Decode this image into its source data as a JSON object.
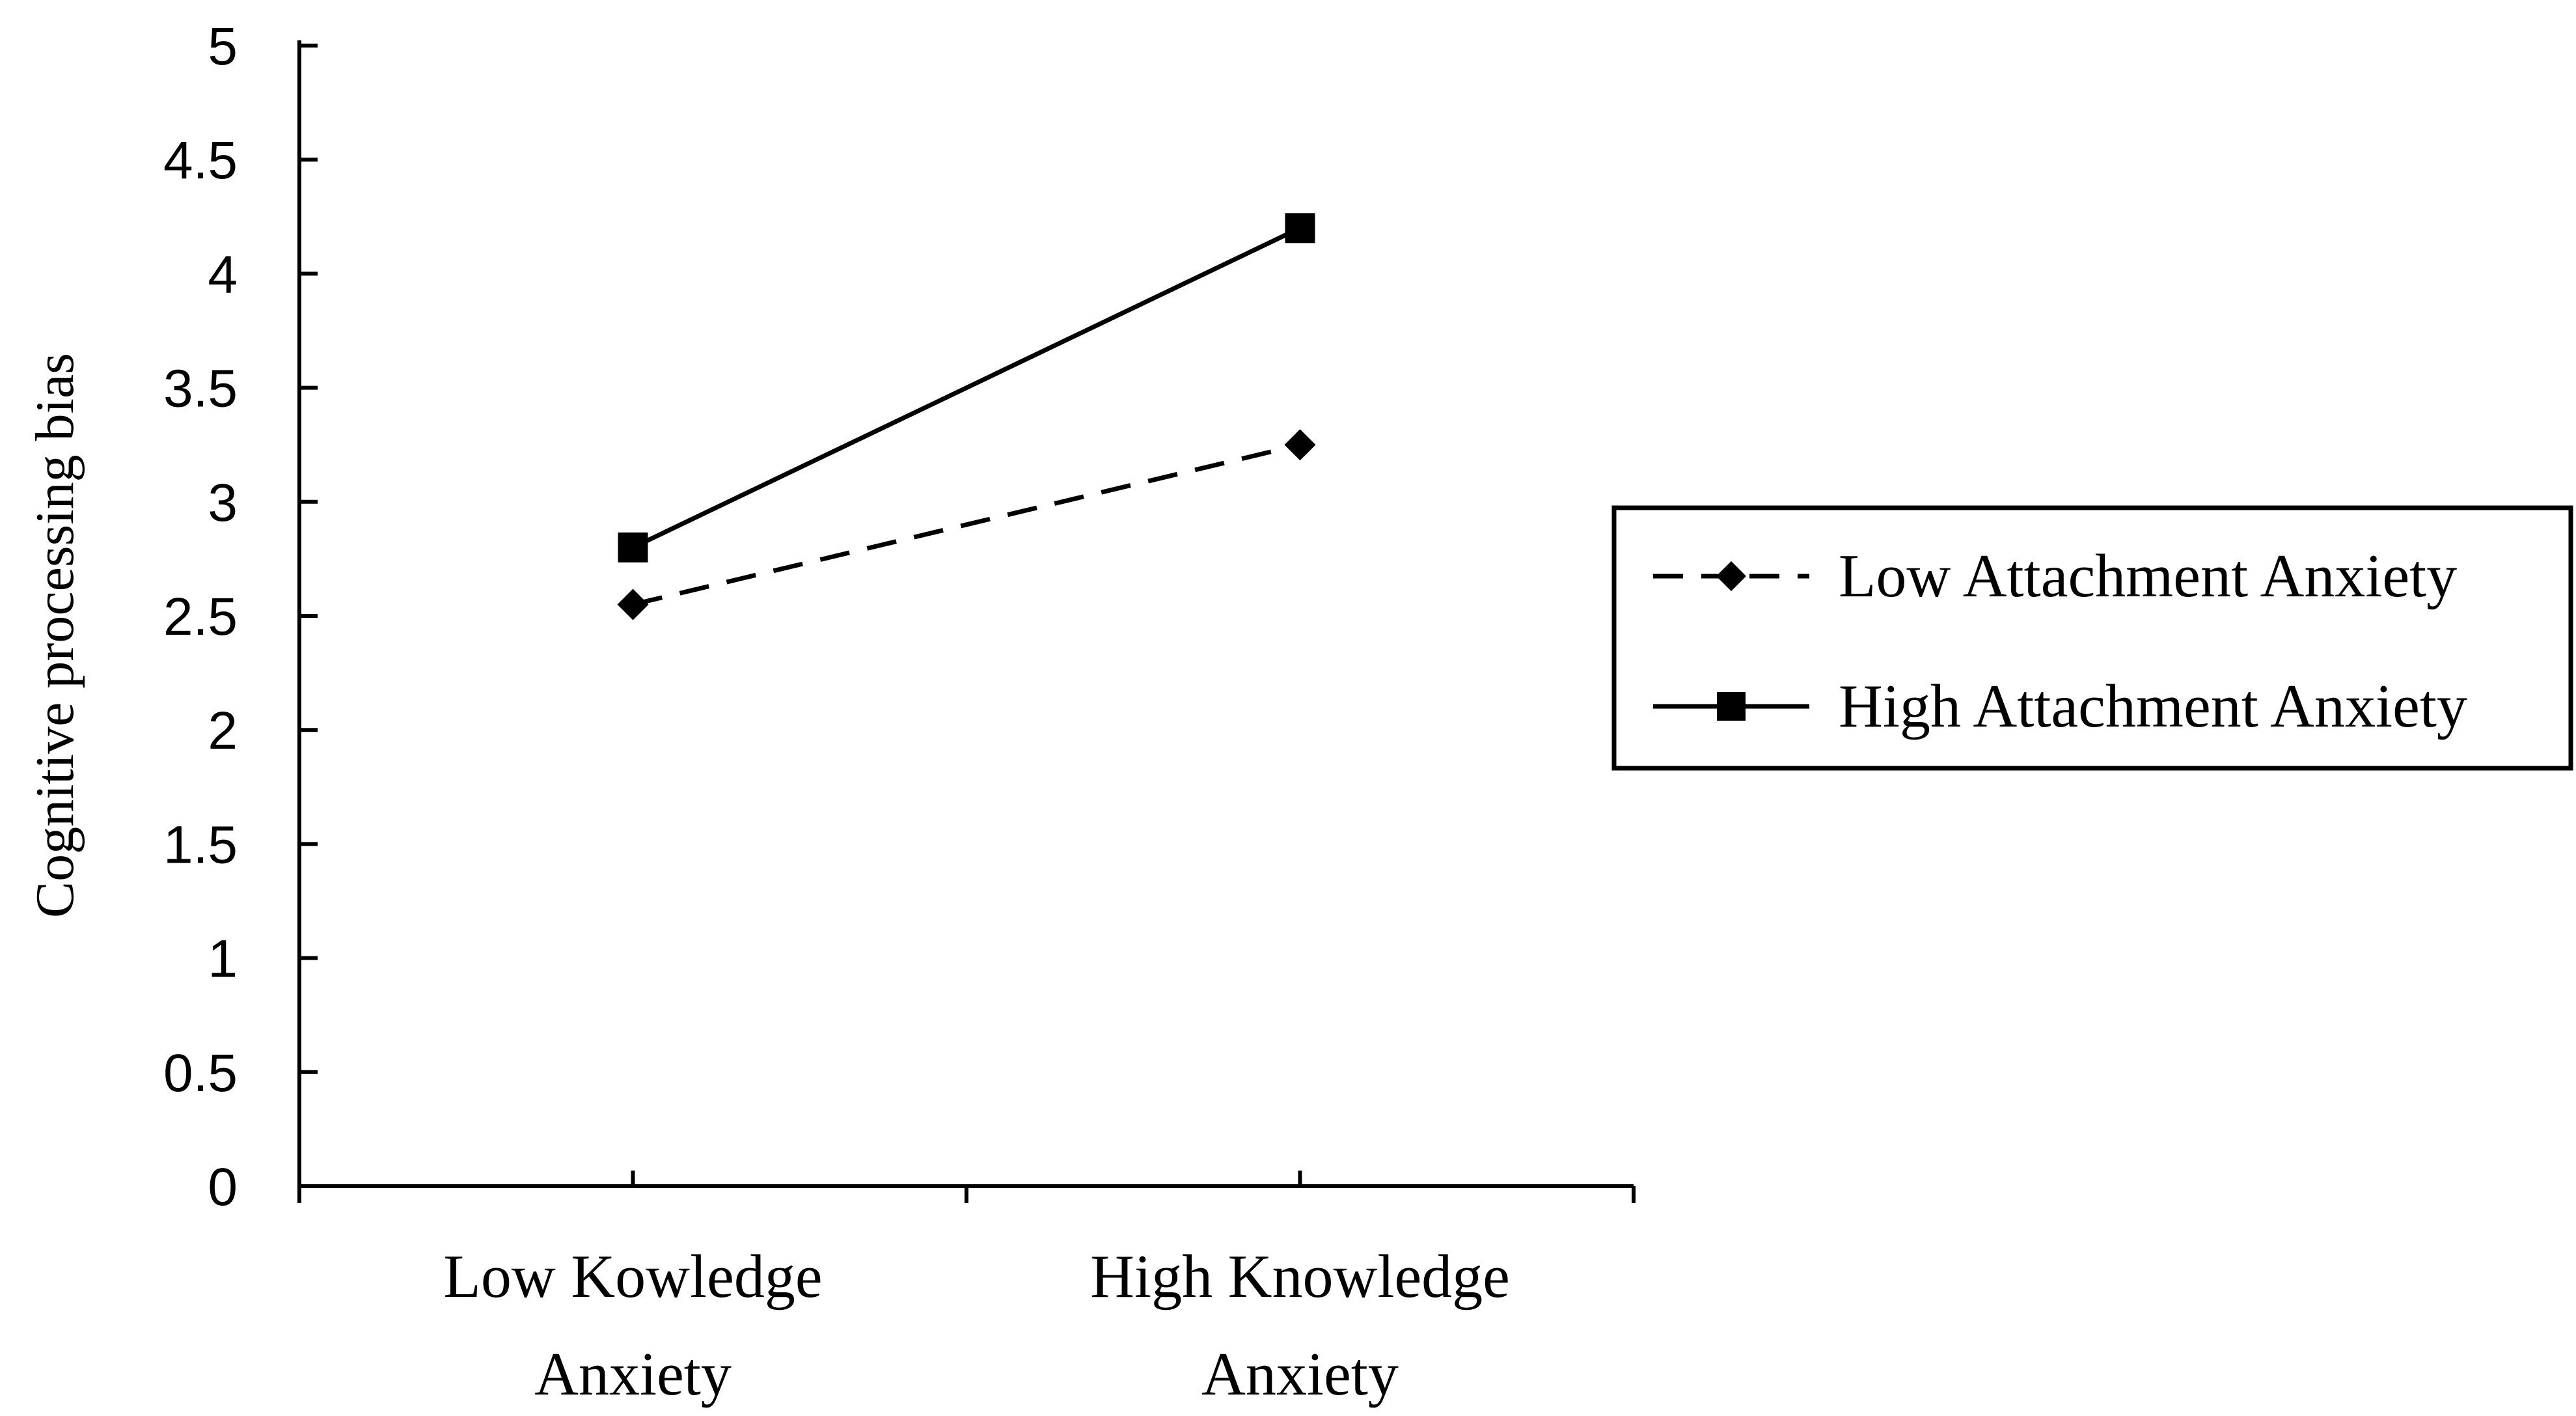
{
  "chart_data": {
    "type": "line",
    "title": "",
    "xlabel": "",
    "ylabel": "Cognitive processing bias",
    "categories": [
      [
        "Low Kowledge",
        "Anxiety"
      ],
      [
        "High Knowledge",
        "Anxiety"
      ]
    ],
    "ylim": [
      0,
      5
    ],
    "yticks": [
      "0",
      "0.5",
      "1",
      "1.5",
      "2",
      "2.5",
      "3",
      "3.5",
      "4",
      "4.5",
      "5"
    ],
    "grid": false,
    "legend_position": "right",
    "series": [
      {
        "name": "Low Attachment Anxiety",
        "values": [
          2.55,
          3.25
        ],
        "line_style": "dashed",
        "marker": "diamond",
        "color": "#000000"
      },
      {
        "name": "High Attachment Anxiety",
        "values": [
          2.8,
          4.2
        ],
        "line_style": "solid",
        "marker": "square",
        "color": "#000000"
      }
    ]
  }
}
